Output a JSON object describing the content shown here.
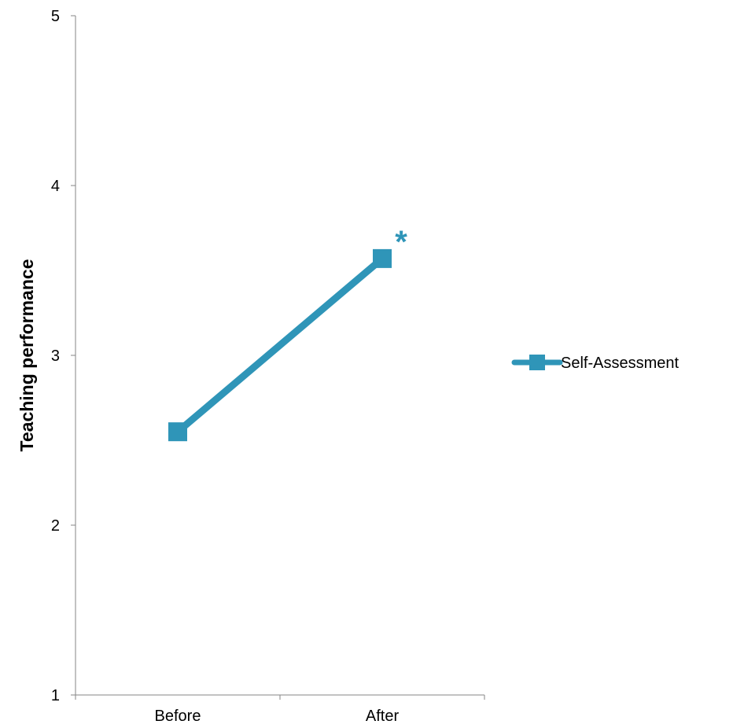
{
  "chart_data": {
    "type": "line",
    "categories": [
      "Before",
      "After"
    ],
    "series": [
      {
        "name": "Self-Assessment",
        "values": [
          2.55,
          3.57
        ],
        "color": "#2f95b8",
        "marker": "square"
      }
    ],
    "xlabel": "",
    "ylabel": "Teaching performance",
    "ylim": [
      1,
      5
    ],
    "yticks": [
      1,
      2,
      3,
      4,
      5
    ],
    "grid": false,
    "legend_position": "right",
    "annotations": [
      {
        "text": "*",
        "category": "After"
      }
    ]
  }
}
